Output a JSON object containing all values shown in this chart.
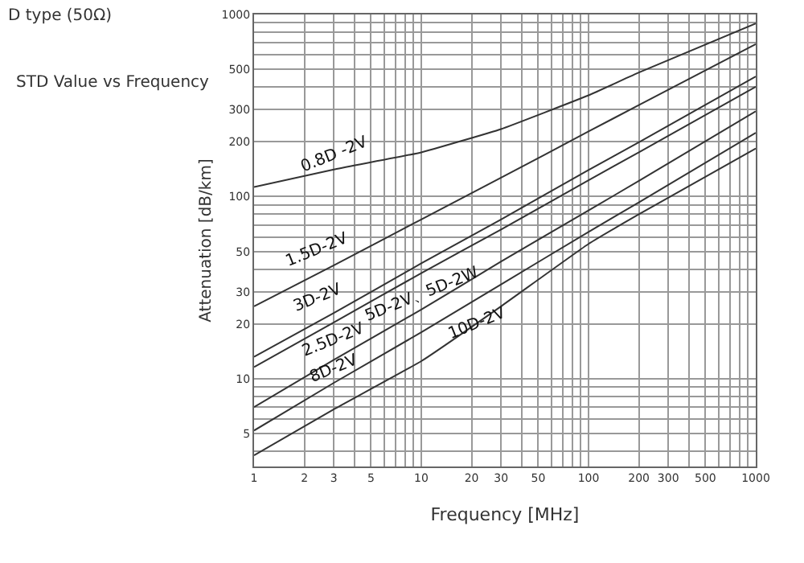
{
  "chart_data": {
    "type": "line",
    "title": "D type (50Ω)",
    "subtitle": "STD Value vs Frequency",
    "xlabel": "Frequency [MHz]",
    "ylabel": "Attenuation [dB/km]",
    "log": "xy",
    "grid": true,
    "marker": "none",
    "line_style": "solid",
    "xlim": [
      1,
      1000
    ],
    "ylim": [
      3.3,
      1000
    ],
    "xticks": [
      1,
      2,
      3,
      {
        "value": 4,
        "label": null
      },
      5,
      {
        "value": 6,
        "label": null
      },
      {
        "value": 7,
        "label": null
      },
      {
        "value": 8,
        "label": null
      },
      {
        "value": 9,
        "label": null
      },
      10,
      20,
      30,
      {
        "value": 40,
        "label": null
      },
      50,
      {
        "value": 60,
        "label": null
      },
      {
        "value": 70,
        "label": null
      },
      {
        "value": 80,
        "label": null
      },
      {
        "value": 90,
        "label": null
      },
      100,
      200,
      300,
      {
        "value": 400,
        "label": null
      },
      500,
      {
        "value": 600,
        "label": null
      },
      {
        "value": 700,
        "label": null
      },
      {
        "value": 800,
        "label": null
      },
      {
        "value": 900,
        "label": null
      },
      1000
    ],
    "yticks": [
      {
        "value": 4,
        "label": null
      },
      5,
      {
        "value": 6,
        "label": null
      },
      {
        "value": 7,
        "label": null
      },
      {
        "value": 8,
        "label": null
      },
      {
        "value": 9,
        "label": null
      },
      10,
      20,
      30,
      {
        "value": 40,
        "label": null
      },
      50,
      {
        "value": 60,
        "label": null
      },
      {
        "value": 70,
        "label": null
      },
      {
        "value": 80,
        "label": null
      },
      {
        "value": 90,
        "label": null
      },
      100,
      200,
      300,
      {
        "value": 400,
        "label": null
      },
      500,
      {
        "value": 600,
        "label": null
      },
      {
        "value": 700,
        "label": null
      },
      {
        "value": 800,
        "label": null
      },
      {
        "value": 900,
        "label": null
      },
      1000
    ],
    "x": [
      1,
      3,
      10,
      30,
      100,
      200,
      1000
    ],
    "series": [
      {
        "color": "#333333",
        "values": [
          113,
          141,
          175,
          235,
          360,
          480,
          893
        ]
      },
      {
        "color": "#333333",
        "values": [
          25,
          42,
          75,
          127,
          228,
          318,
          687
        ]
      },
      {
        "color": "#333333",
        "values": [
          13.2,
          23,
          43,
          75,
          140,
          199,
          457
        ]
      },
      {
        "color": "#333333",
        "values": [
          11.6,
          20.4,
          38,
          66,
          123,
          175,
          401
        ]
      },
      {
        "color": "#333333",
        "values": [
          7,
          12.7,
          24,
          44,
          84,
          122,
          294
        ]
      },
      {
        "color": "#333333",
        "values": [
          5.2,
          9.5,
          18,
          33,
          64,
          93,
          224
        ]
      },
      {
        "color": "#333333",
        "values": [
          3.8,
          6.8,
          12.5,
          25,
          55,
          80,
          184
        ]
      }
    ],
    "annotations": [
      {
        "text": "0.8D -2V",
        "x": 3,
        "y": 141
      },
      {
        "text": "1.5D-2V",
        "x": 3,
        "y": 42
      },
      {
        "text": "3D-2V",
        "x": 3,
        "y": 23
      },
      {
        "text": "2.5D-2V",
        "x": 3,
        "y": 20.4
      },
      {
        "text": "5D-2V、5D-2W",
        "x": 10,
        "y": 24
      },
      {
        "text": "8D-2V",
        "x": 3,
        "y": 9.5
      },
      {
        "text": "10D-2V",
        "x": 30,
        "y": 25
      }
    ]
  }
}
